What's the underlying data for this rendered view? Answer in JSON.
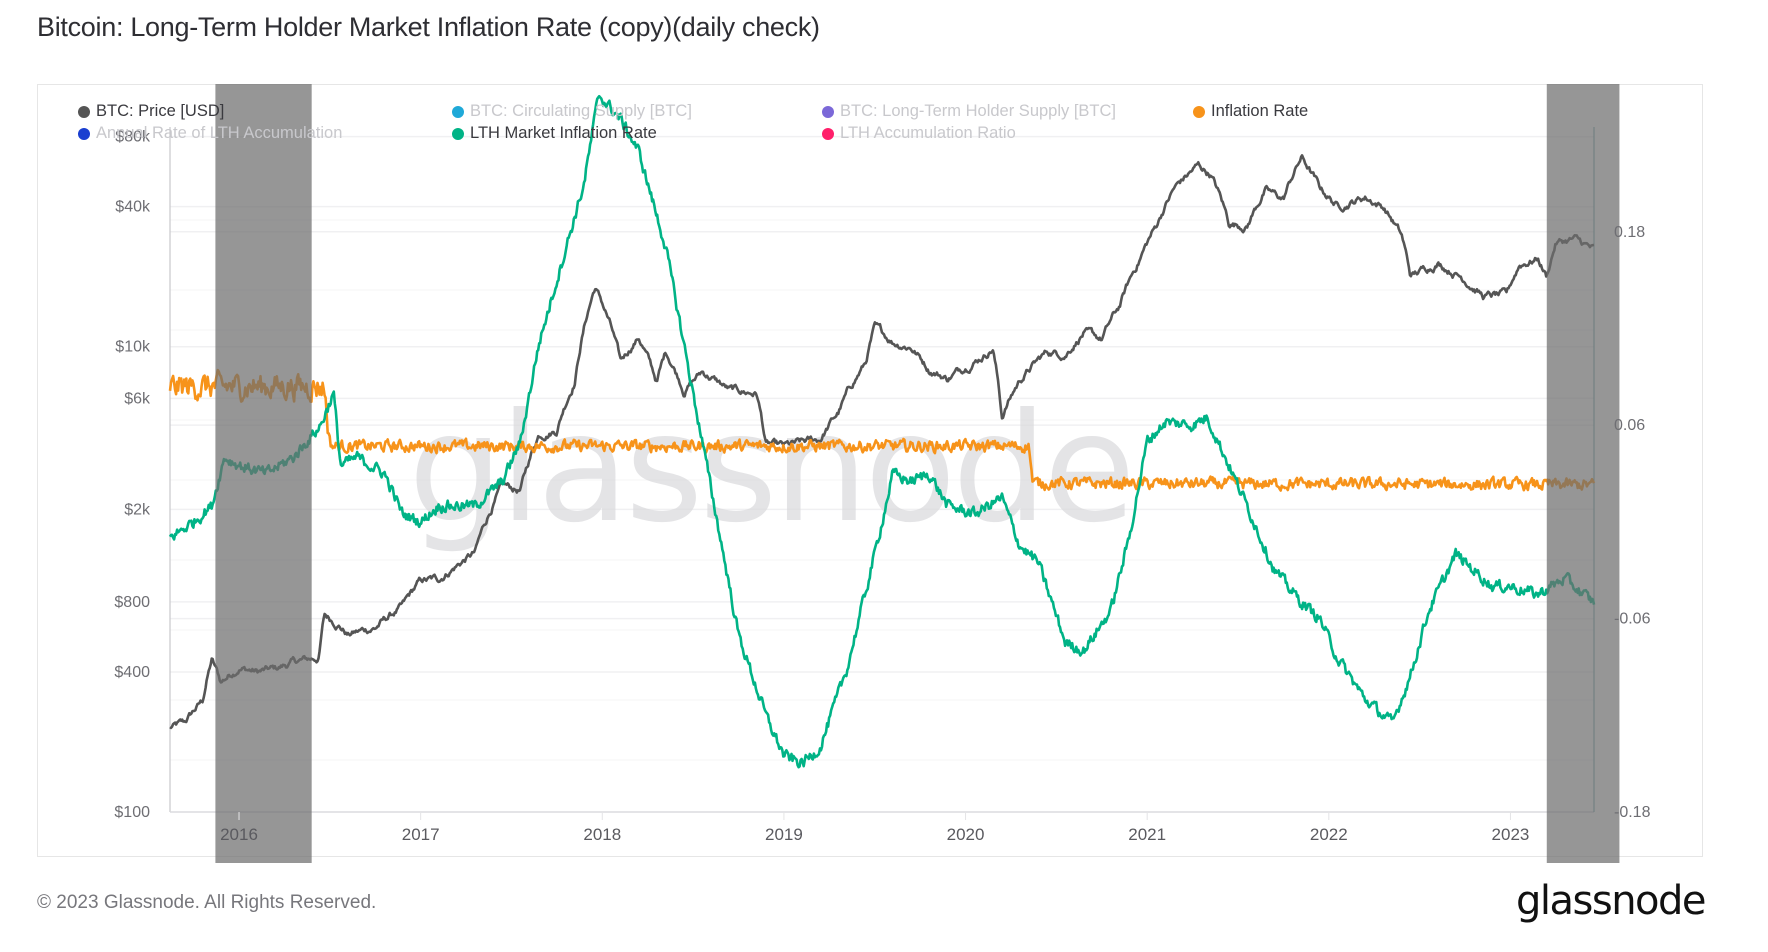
{
  "title": "Bitcoin: Long-Term Holder Market Inflation Rate (copy)(daily check)",
  "footer": "© 2023 Glassnode. All Rights Reserved.",
  "logo": "glassnode",
  "watermark": "glassnode",
  "legend": [
    {
      "label": "BTC: Price [USD]",
      "color": "#555555",
      "active": true
    },
    {
      "label": "BTC: Circulating Supply [BTC]",
      "color": "#1fa9d8",
      "active": false
    },
    {
      "label": "BTC: Long-Term Holder Supply [BTC]",
      "color": "#7b68d8",
      "active": false
    },
    {
      "label": "Inflation Rate",
      "color": "#f7931a",
      "active": true
    },
    {
      "label": "Annual Rate of LTH Accumulation",
      "color": "#1a3fd0",
      "active": false
    },
    {
      "label": "LTH Market Inflation Rate",
      "color": "#00b386",
      "active": true
    },
    {
      "label": "LTH Accumulation Ratio",
      "color": "#ff1f6a",
      "active": false
    }
  ],
  "chart_data": {
    "type": "line",
    "title": "Bitcoin: Long-Term Holder Market Inflation Rate (copy)(daily check)",
    "x_range": [
      2015.62,
      2023.46
    ],
    "x_ticks": [
      "2016",
      "2017",
      "2018",
      "2019",
      "2020",
      "2021",
      "2022",
      "2023"
    ],
    "y_left": {
      "scale": "log",
      "label": "BTC: Price [USD]",
      "range": [
        100,
        88000
      ],
      "ticks": [
        {
          "value": 100,
          "label": "$100"
        },
        {
          "value": 400,
          "label": "$400"
        },
        {
          "value": 800,
          "label": "$800"
        },
        {
          "value": 2000,
          "label": "$2k"
        },
        {
          "value": 6000,
          "label": "$6k"
        },
        {
          "value": 10000,
          "label": "$10k"
        },
        {
          "value": 40000,
          "label": "$40k"
        },
        {
          "value": 80000,
          "label": "$80k"
        }
      ]
    },
    "y_right": {
      "scale": "linear",
      "range": [
        -0.18,
        0.245
      ],
      "ticks": [
        {
          "value": -0.18,
          "label": "-0.18"
        },
        {
          "value": -0.06,
          "label": "-0.06"
        },
        {
          "value": 0.06,
          "label": "0.06"
        },
        {
          "value": 0.18,
          "label": "0.18"
        }
      ]
    },
    "shaded_regions": [
      {
        "from": 2015.87,
        "to": 2016.4
      },
      {
        "from": 2023.2,
        "to": 2023.6
      }
    ],
    "series": [
      {
        "name": "BTC: Price [USD]",
        "axis": "left",
        "color": "#555555",
        "noise": 0.05,
        "points": [
          [
            2015.62,
            230
          ],
          [
            2015.7,
            240
          ],
          [
            2015.8,
            300
          ],
          [
            2015.85,
            450
          ],
          [
            2015.9,
            360
          ],
          [
            2016.0,
            420
          ],
          [
            2016.1,
            400
          ],
          [
            2016.2,
            410
          ],
          [
            2016.3,
            440
          ],
          [
            2016.44,
            460
          ],
          [
            2016.47,
            700
          ],
          [
            2016.55,
            640
          ],
          [
            2016.6,
            580
          ],
          [
            2016.75,
            620
          ],
          [
            2016.9,
            760
          ],
          [
            2017.0,
            980
          ],
          [
            2017.1,
            1000
          ],
          [
            2017.2,
            1150
          ],
          [
            2017.3,
            1300
          ],
          [
            2017.45,
            2500
          ],
          [
            2017.55,
            2400
          ],
          [
            2017.65,
            4200
          ],
          [
            2017.75,
            4400
          ],
          [
            2017.85,
            7200
          ],
          [
            2017.96,
            18000
          ],
          [
            2018.05,
            12000
          ],
          [
            2018.1,
            8500
          ],
          [
            2018.2,
            11000
          ],
          [
            2018.3,
            7000
          ],
          [
            2018.35,
            9500
          ],
          [
            2018.45,
            6500
          ],
          [
            2018.55,
            7800
          ],
          [
            2018.7,
            6500
          ],
          [
            2018.85,
            6300
          ],
          [
            2018.9,
            3800
          ],
          [
            2019.0,
            3700
          ],
          [
            2019.2,
            4000
          ],
          [
            2019.3,
            5200
          ],
          [
            2019.45,
            8500
          ],
          [
            2019.5,
            12000
          ],
          [
            2019.6,
            10500
          ],
          [
            2019.7,
            10000
          ],
          [
            2019.8,
            8000
          ],
          [
            2019.9,
            7300
          ],
          [
            2020.1,
            9200
          ],
          [
            2020.15,
            9900
          ],
          [
            2020.2,
            5000
          ],
          [
            2020.3,
            7200
          ],
          [
            2020.45,
            9500
          ],
          [
            2020.55,
            9300
          ],
          [
            2020.65,
            11500
          ],
          [
            2020.75,
            10700
          ],
          [
            2020.85,
            15000
          ],
          [
            2020.95,
            23000
          ],
          [
            2021.05,
            33000
          ],
          [
            2021.15,
            48000
          ],
          [
            2021.28,
            60000
          ],
          [
            2021.35,
            55000
          ],
          [
            2021.45,
            34000
          ],
          [
            2021.55,
            33000
          ],
          [
            2021.65,
            47000
          ],
          [
            2021.75,
            43000
          ],
          [
            2021.85,
            65000
          ],
          [
            2021.95,
            48000
          ],
          [
            2022.05,
            40000
          ],
          [
            2022.2,
            44000
          ],
          [
            2022.3,
            40000
          ],
          [
            2022.4,
            30000
          ],
          [
            2022.45,
            20000
          ],
          [
            2022.6,
            23000
          ],
          [
            2022.75,
            19500
          ],
          [
            2022.85,
            16500
          ],
          [
            2022.98,
            16600
          ],
          [
            2023.05,
            22500
          ],
          [
            2023.15,
            24000
          ],
          [
            2023.2,
            20000
          ],
          [
            2023.25,
            28000
          ],
          [
            2023.35,
            29000
          ],
          [
            2023.46,
            26000
          ]
        ]
      },
      {
        "name": "Inflation Rate",
        "axis": "right",
        "color": "#f7931a",
        "noise": 0.006,
        "points": [
          [
            2015.62,
            0.084
          ],
          [
            2016.47,
            0.084
          ],
          [
            2016.5,
            0.047
          ],
          [
            2020.35,
            0.047
          ],
          [
            2020.37,
            0.024
          ],
          [
            2023.46,
            0.023
          ]
        ]
      },
      {
        "name": "LTH Market Inflation Rate",
        "axis": "right",
        "color": "#00b386",
        "noise": 0.006,
        "points": [
          [
            2015.62,
            -0.01
          ],
          [
            2015.75,
            0.0
          ],
          [
            2015.85,
            0.01
          ],
          [
            2015.92,
            0.04
          ],
          [
            2016.0,
            0.035
          ],
          [
            2016.15,
            0.03
          ],
          [
            2016.3,
            0.04
          ],
          [
            2016.45,
            0.06
          ],
          [
            2016.52,
            0.08
          ],
          [
            2016.56,
            0.035
          ],
          [
            2016.65,
            0.04
          ],
          [
            2016.8,
            0.03
          ],
          [
            2016.9,
            0.005
          ],
          [
            2017.0,
            0.0
          ],
          [
            2017.1,
            0.01
          ],
          [
            2017.3,
            0.01
          ],
          [
            2017.45,
            0.025
          ],
          [
            2017.55,
            0.05
          ],
          [
            2017.65,
            0.11
          ],
          [
            2017.8,
            0.17
          ],
          [
            2017.9,
            0.21
          ],
          [
            2017.98,
            0.265
          ],
          [
            2018.1,
            0.25
          ],
          [
            2018.2,
            0.23
          ],
          [
            2018.35,
            0.17
          ],
          [
            2018.45,
            0.11
          ],
          [
            2018.55,
            0.05
          ],
          [
            2018.65,
            -0.01
          ],
          [
            2018.75,
            -0.07
          ],
          [
            2018.9,
            -0.12
          ],
          [
            2019.0,
            -0.145
          ],
          [
            2019.1,
            -0.15
          ],
          [
            2019.2,
            -0.14
          ],
          [
            2019.35,
            -0.09
          ],
          [
            2019.5,
            -0.02
          ],
          [
            2019.6,
            0.03
          ],
          [
            2019.7,
            0.025
          ],
          [
            2019.8,
            0.03
          ],
          [
            2019.9,
            0.01
          ],
          [
            2020.05,
            0.005
          ],
          [
            2020.2,
            0.015
          ],
          [
            2020.3,
            -0.015
          ],
          [
            2020.4,
            -0.025
          ],
          [
            2020.55,
            -0.075
          ],
          [
            2020.65,
            -0.08
          ],
          [
            2020.8,
            -0.055
          ],
          [
            2020.9,
            -0.01
          ],
          [
            2021.0,
            0.05
          ],
          [
            2021.1,
            0.062
          ],
          [
            2021.25,
            0.06
          ],
          [
            2021.33,
            0.065
          ],
          [
            2021.45,
            0.035
          ],
          [
            2021.55,
            0.01
          ],
          [
            2021.7,
            -0.03
          ],
          [
            2021.85,
            -0.05
          ],
          [
            2021.95,
            -0.06
          ],
          [
            2022.05,
            -0.085
          ],
          [
            2022.2,
            -0.11
          ],
          [
            2022.3,
            -0.12
          ],
          [
            2022.35,
            -0.125
          ],
          [
            2022.45,
            -0.095
          ],
          [
            2022.55,
            -0.055
          ],
          [
            2022.7,
            -0.02
          ],
          [
            2022.8,
            -0.03
          ],
          [
            2022.9,
            -0.04
          ],
          [
            2023.0,
            -0.04
          ],
          [
            2023.15,
            -0.045
          ],
          [
            2023.3,
            -0.035
          ],
          [
            2023.4,
            -0.045
          ],
          [
            2023.46,
            -0.05
          ]
        ]
      }
    ]
  }
}
